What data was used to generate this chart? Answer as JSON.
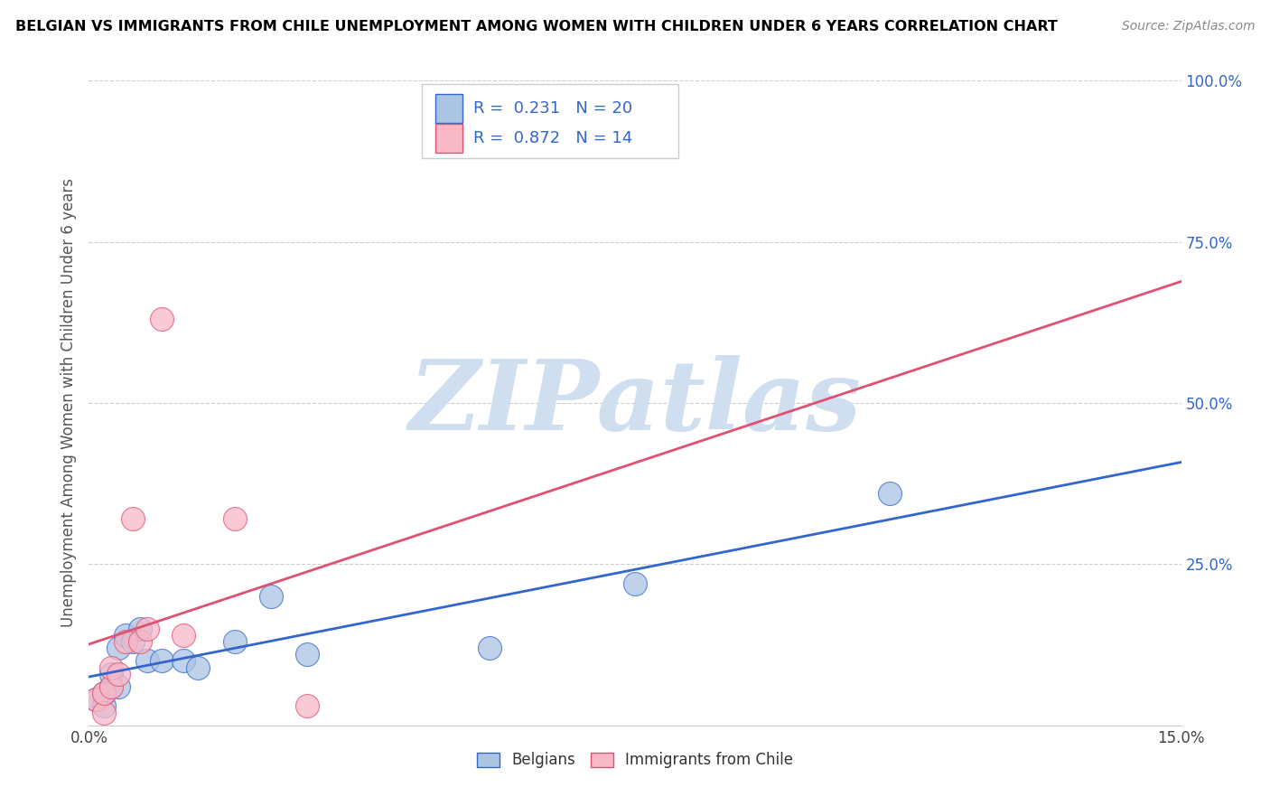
{
  "title": "BELGIAN VS IMMIGRANTS FROM CHILE UNEMPLOYMENT AMONG WOMEN WITH CHILDREN UNDER 6 YEARS CORRELATION CHART",
  "source": "Source: ZipAtlas.com",
  "ylabel": "Unemployment Among Women with Children Under 6 years",
  "xlim": [
    0.0,
    0.15
  ],
  "ylim": [
    0.0,
    1.0
  ],
  "belgian_color": "#aac4e2",
  "chilean_color": "#f7b8c8",
  "belgian_line_color": "#3366cc",
  "chilean_line_color": "#e05070",
  "watermark_color": "#d0dff0",
  "legend_R_belgian": "R =  0.231",
  "legend_N_belgian": "N = 20",
  "legend_R_chilean": "R =  0.872",
  "legend_N_chilean": "N = 14",
  "legend_text_color": "#3366cc",
  "belgian_x": [
    0.001,
    0.002,
    0.002,
    0.003,
    0.003,
    0.004,
    0.004,
    0.005,
    0.006,
    0.007,
    0.008,
    0.01,
    0.013,
    0.015,
    0.02,
    0.025,
    0.03,
    0.055,
    0.075,
    0.11
  ],
  "belgian_y": [
    0.04,
    0.03,
    0.05,
    0.06,
    0.08,
    0.06,
    0.12,
    0.14,
    0.13,
    0.15,
    0.1,
    0.1,
    0.1,
    0.09,
    0.13,
    0.2,
    0.11,
    0.12,
    0.22,
    0.36
  ],
  "chilean_x": [
    0.001,
    0.002,
    0.002,
    0.003,
    0.003,
    0.004,
    0.005,
    0.006,
    0.007,
    0.008,
    0.01,
    0.013,
    0.02,
    0.03
  ],
  "chilean_y": [
    0.04,
    0.02,
    0.05,
    0.06,
    0.09,
    0.08,
    0.13,
    0.32,
    0.13,
    0.15,
    0.63,
    0.14,
    0.32,
    0.03
  ]
}
